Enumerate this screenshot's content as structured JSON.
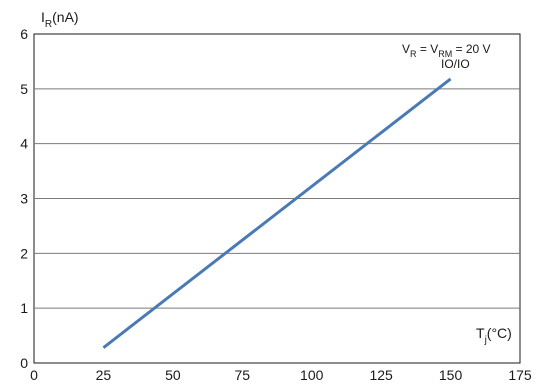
{
  "chart_data": {
    "type": "line",
    "ylabel_main": "I",
    "ylabel_sub": "R",
    "ylabel_unit": "(nA)",
    "xlabel_main": "T",
    "xlabel_sub": "j",
    "xlabel_unit": "(°C)",
    "xlim": [
      0,
      175
    ],
    "ylim": [
      0,
      6
    ],
    "xticks": [
      "0",
      "25",
      "50",
      "75",
      "100",
      "125",
      "150",
      "175"
    ],
    "yticks": [
      "0",
      "1",
      "2",
      "3",
      "4",
      "5",
      "6"
    ],
    "grid": "horizontal",
    "annotation": {
      "p1": "V",
      "p1_sub": "R",
      "p2": " = V",
      "p2_sub": "RM",
      "p3": " = 20 V",
      "line2": "IO/IO"
    },
    "series": [
      {
        "color": "#4a7ab5",
        "x": [
          25,
          150
        ],
        "y": [
          0.28,
          5.18
        ]
      }
    ]
  }
}
